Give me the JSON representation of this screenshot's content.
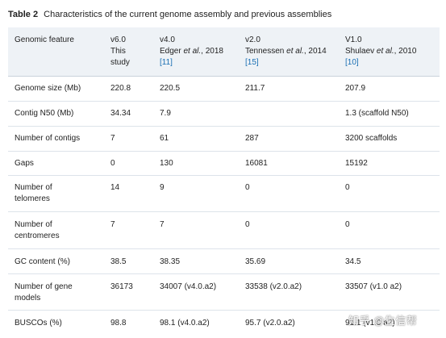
{
  "caption": {
    "label": "Table 2",
    "title": "Characteristics of the current genome assembly and previous assemblies"
  },
  "header": {
    "feature": "Genomic feature",
    "v6": {
      "line1": "v6.0",
      "line2": "This",
      "line3": "study"
    },
    "v4": {
      "version": "v4.0",
      "author": "Edger",
      "etal": " et al.",
      "year": ", 2018",
      "ref": "[11]"
    },
    "v2": {
      "version": "v2.0",
      "author": "Tennessen",
      "etal": " et al.",
      "year": ", 2014",
      "ref": "[15]"
    },
    "v1": {
      "version": "V1.0",
      "author": "Shulaev",
      "etal": " et al.",
      "year": ", 2010",
      "ref": "[10]"
    }
  },
  "rows": [
    {
      "feature": [
        "Genome size (Mb)"
      ],
      "v6": "220.8",
      "v4": "220.5",
      "v2": "211.7",
      "v1": "207.9"
    },
    {
      "feature": [
        "Contig N50 (Mb)"
      ],
      "v6": "34.34",
      "v4": "7.9",
      "v2": "",
      "v1": "1.3 (scaffold N50)"
    },
    {
      "feature": [
        "Number of contigs"
      ],
      "v6": "7",
      "v4": "61",
      "v2": "287",
      "v1": "3200 scaffolds"
    },
    {
      "feature": [
        "Gaps"
      ],
      "v6": "0",
      "v4": "130",
      "v2": "16081",
      "v1": "15192"
    },
    {
      "feature": [
        "Number of",
        "telomeres"
      ],
      "v6": "14",
      "v4": "9",
      "v2": "0",
      "v1": "0"
    },
    {
      "feature": [
        "Number of",
        "centromeres"
      ],
      "v6": "7",
      "v4": "7",
      "v2": "0",
      "v1": "0"
    },
    {
      "feature": [
        "GC content (%)"
      ],
      "v6": "38.5",
      "v4": "38.35",
      "v2": "35.69",
      "v1": "34.5"
    },
    {
      "feature": [
        "Number of gene",
        "models"
      ],
      "v6": "36173",
      "v4": "34007 (v4.0.a2)",
      "v2": "33538 (v2.0.a2)",
      "v1": "33507 (v1.0 a2)"
    },
    {
      "feature": [
        "BUSCOs (%)"
      ],
      "v6": "98.8",
      "v4": "98.1 (v4.0.a2)",
      "v2": "95.7 (v2.0.a2)",
      "v1": "91.1 (v1.0 a2)"
    }
  ],
  "watermark": "知乎 @生信帮"
}
